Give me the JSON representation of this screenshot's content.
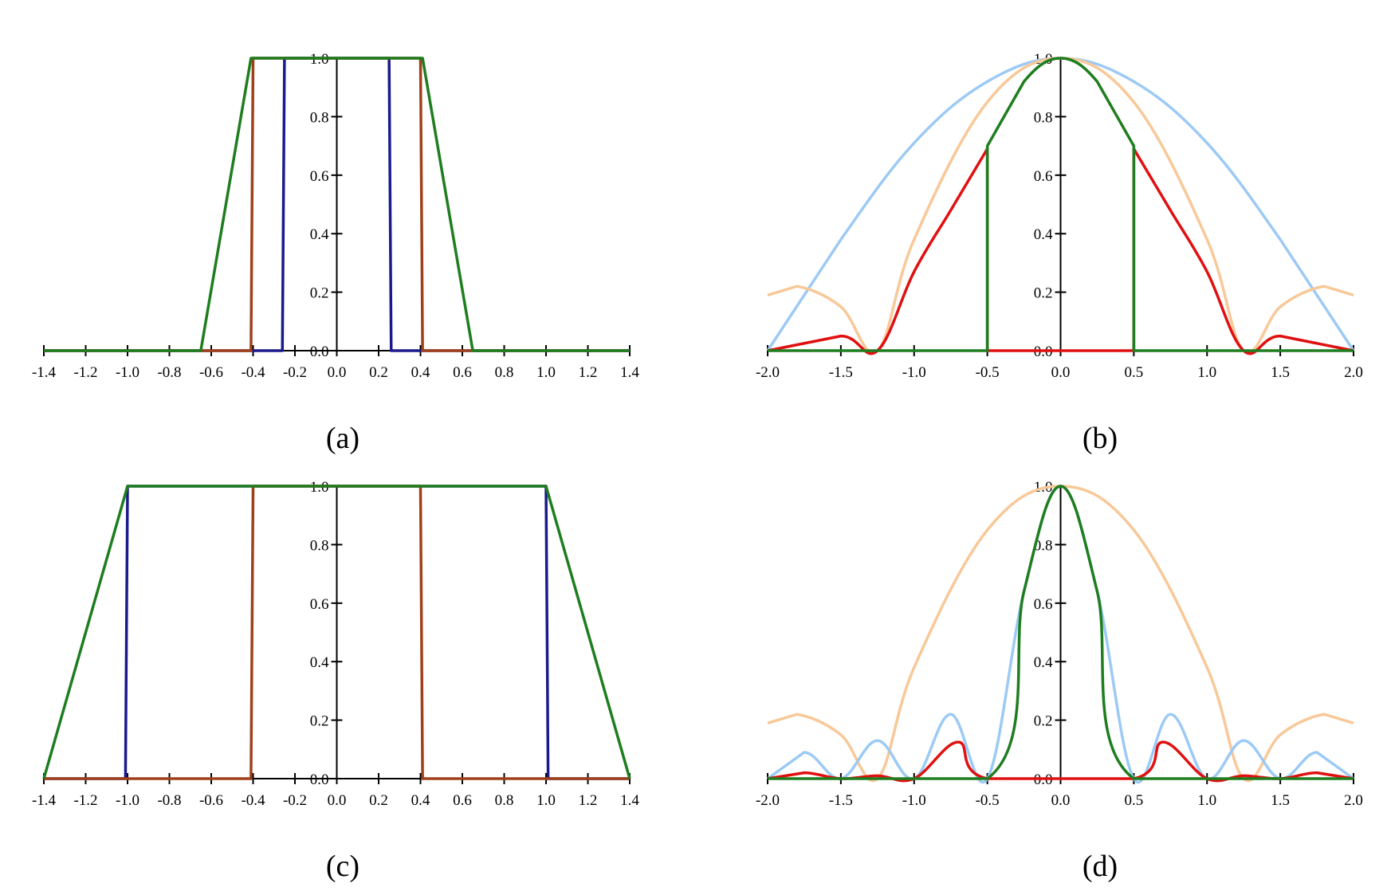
{
  "chart_data": [
    {
      "type": "line",
      "caption": "(a)",
      "xlim": [
        -1.4,
        1.4
      ],
      "ylim": [
        0.0,
        1.0
      ],
      "x_ticks": [
        "-1.4",
        "-1.2",
        "-1.0",
        "-0.8",
        "-0.6",
        "-0.4",
        "-0.2",
        "0.0",
        "0.2",
        "0.4",
        "0.6",
        "0.8",
        "1.0",
        "1.2",
        "1.4"
      ],
      "y_ticks": [
        "0.0",
        "0.2",
        "0.4",
        "0.6",
        "0.8",
        "1.0"
      ],
      "series": [
        {
          "color": "#1a1a8c",
          "points": [
            [
              -1.4,
              0
            ],
            [
              -0.26,
              0
            ],
            [
              -0.25,
              1
            ],
            [
              0.25,
              1
            ],
            [
              0.26,
              0
            ],
            [
              1.4,
              0
            ]
          ]
        },
        {
          "color": "#a0401a",
          "points": [
            [
              -1.4,
              0
            ],
            [
              -0.41,
              0
            ],
            [
              -0.4,
              1
            ],
            [
              0.4,
              1
            ],
            [
              0.41,
              0
            ],
            [
              1.4,
              0
            ]
          ]
        },
        {
          "color": "#1e7d1e",
          "points": [
            [
              -1.4,
              0
            ],
            [
              -0.65,
              0
            ],
            [
              -0.41,
              1
            ],
            [
              0.41,
              1
            ],
            [
              0.65,
              0
            ],
            [
              1.4,
              0
            ]
          ]
        }
      ]
    },
    {
      "type": "line",
      "caption": "(b)",
      "xlim": [
        -2.0,
        2.0
      ],
      "ylim": [
        0.0,
        1.0
      ],
      "x_ticks": [
        "-2.0",
        "-1.5",
        "-1.0",
        "-0.5",
        "0.0",
        "0.5",
        "1.0",
        "1.5",
        "2.0"
      ],
      "y_ticks": [
        "0.0",
        "0.2",
        "0.4",
        "0.6",
        "0.8",
        "1.0"
      ],
      "series": [
        {
          "color": "#9ccaf5",
          "points": [
            [
              -2.0,
              0.0
            ],
            [
              -1.5,
              0.38
            ],
            [
              -1.0,
              0.71
            ],
            [
              -0.5,
              0.92
            ],
            [
              0.0,
              1.0
            ],
            [
              0.5,
              0.92
            ],
            [
              1.0,
              0.71
            ],
            [
              1.5,
              0.38
            ],
            [
              2.0,
              0.0
            ]
          ]
        },
        {
          "color": "#f8c898",
          "points": [
            [
              -2.0,
              0.19
            ],
            [
              -1.8,
              0.22
            ],
            [
              -1.5,
              0.15
            ],
            [
              -1.25,
              0.0
            ],
            [
              -1.0,
              0.38
            ],
            [
              -0.5,
              0.85
            ],
            [
              0.0,
              1.0
            ],
            [
              0.5,
              0.85
            ],
            [
              1.0,
              0.38
            ],
            [
              1.25,
              0.0
            ],
            [
              1.5,
              0.15
            ],
            [
              1.8,
              0.22
            ],
            [
              2.0,
              0.19
            ]
          ]
        },
        {
          "color": "#e01010",
          "points": [
            [
              -2.0,
              0.0
            ],
            [
              -1.5,
              0.05
            ],
            [
              -1.25,
              0.0
            ],
            [
              -1.0,
              0.27
            ],
            [
              -0.75,
              0.48
            ],
            [
              -0.5,
              0.69
            ],
            [
              -0.5,
              0.0
            ],
            [
              0.5,
              0.0
            ],
            [
              0.5,
              0.69
            ],
            [
              0.75,
              0.48
            ],
            [
              1.0,
              0.27
            ],
            [
              1.25,
              0.0
            ],
            [
              1.5,
              0.05
            ],
            [
              2.0,
              0.0
            ]
          ]
        },
        {
          "color": "#1e7d1e",
          "points": [
            [
              -2.0,
              0.0
            ],
            [
              -0.5,
              0.0
            ],
            [
              -0.5,
              0.7
            ],
            [
              -0.25,
              0.92
            ],
            [
              0.0,
              1.0
            ],
            [
              0.25,
              0.92
            ],
            [
              0.5,
              0.7
            ],
            [
              0.5,
              0.0
            ],
            [
              2.0,
              0.0
            ]
          ]
        }
      ]
    },
    {
      "type": "line",
      "caption": "(c)",
      "xlim": [
        -1.4,
        1.4
      ],
      "ylim": [
        0.0,
        1.0
      ],
      "x_ticks": [
        "-1.4",
        "-1.2",
        "-1.0",
        "-0.8",
        "-0.6",
        "-0.4",
        "-0.2",
        "0.0",
        "0.2",
        "0.4",
        "0.6",
        "0.8",
        "1.0",
        "1.2",
        "1.4"
      ],
      "y_ticks": [
        "0.0",
        "0.2",
        "0.4",
        "0.6",
        "0.8",
        "1.0"
      ],
      "series": [
        {
          "color": "#1a1a8c",
          "points": [
            [
              -1.4,
              0
            ],
            [
              -1.01,
              0
            ],
            [
              -1.0,
              1
            ],
            [
              1.0,
              1
            ],
            [
              1.01,
              0
            ],
            [
              1.4,
              0
            ]
          ]
        },
        {
          "color": "#a0401a",
          "points": [
            [
              -1.4,
              0
            ],
            [
              -0.41,
              0
            ],
            [
              -0.4,
              1
            ],
            [
              0.4,
              1
            ],
            [
              0.41,
              0
            ],
            [
              1.4,
              0
            ]
          ]
        },
        {
          "color": "#1e7d1e",
          "points": [
            [
              -1.4,
              0
            ],
            [
              -1.0,
              1
            ],
            [
              1.0,
              1
            ],
            [
              1.4,
              0
            ]
          ]
        }
      ]
    },
    {
      "type": "line",
      "caption": "(d)",
      "xlim": [
        -2.0,
        2.0
      ],
      "ylim": [
        0.0,
        1.0
      ],
      "x_ticks": [
        "-2.0",
        "-1.5",
        "-1.0",
        "-0.5",
        "0.0",
        "0.5",
        "1.0",
        "1.5",
        "2.0"
      ],
      "y_ticks": [
        "0.0",
        "0.2",
        "0.4",
        "0.6",
        "0.8",
        "1.0"
      ],
      "series": [
        {
          "color": "#f8c898",
          "points": [
            [
              -2.0,
              0.19
            ],
            [
              -1.8,
              0.22
            ],
            [
              -1.5,
              0.15
            ],
            [
              -1.25,
              0.0
            ],
            [
              -1.0,
              0.38
            ],
            [
              -0.5,
              0.85
            ],
            [
              0.0,
              1.0
            ],
            [
              0.5,
              0.85
            ],
            [
              1.0,
              0.38
            ],
            [
              1.25,
              0.0
            ],
            [
              1.5,
              0.15
            ],
            [
              1.8,
              0.22
            ],
            [
              2.0,
              0.19
            ]
          ]
        },
        {
          "color": "#9ccaf5",
          "points": [
            [
              -2.0,
              0.0
            ],
            [
              -1.75,
              0.09
            ],
            [
              -1.5,
              0.0
            ],
            [
              -1.25,
              0.13
            ],
            [
              -1.0,
              0.0
            ],
            [
              -0.75,
              0.22
            ],
            [
              -0.5,
              0.0
            ],
            [
              -0.25,
              0.64
            ],
            [
              0.0,
              1.0
            ],
            [
              0.25,
              0.64
            ],
            [
              0.5,
              0.0
            ],
            [
              0.75,
              0.22
            ],
            [
              1.0,
              0.0
            ],
            [
              1.25,
              0.13
            ],
            [
              1.5,
              0.0
            ],
            [
              1.75,
              0.09
            ],
            [
              2.0,
              0.0
            ]
          ]
        },
        {
          "color": "#e01010",
          "points": [
            [
              -2.0,
              0.0
            ],
            [
              -1.75,
              0.02
            ],
            [
              -1.5,
              0.0
            ],
            [
              -1.25,
              0.01
            ],
            [
              -1.0,
              0.0
            ],
            [
              -0.7,
              0.125
            ],
            [
              -0.5,
              0.0
            ],
            [
              0.5,
              0.0
            ],
            [
              0.7,
              0.125
            ],
            [
              1.0,
              0.0
            ],
            [
              1.25,
              0.01
            ],
            [
              1.5,
              0.0
            ],
            [
              1.75,
              0.02
            ],
            [
              2.0,
              0.0
            ]
          ]
        },
        {
          "color": "#1e7d1e",
          "points": [
            [
              -2.0,
              0.0
            ],
            [
              -0.5,
              0.0
            ],
            [
              -0.25,
              0.64
            ],
            [
              0.0,
              1.0
            ],
            [
              0.25,
              0.64
            ],
            [
              0.5,
              0.0
            ],
            [
              2.0,
              0.0
            ]
          ]
        }
      ]
    }
  ]
}
